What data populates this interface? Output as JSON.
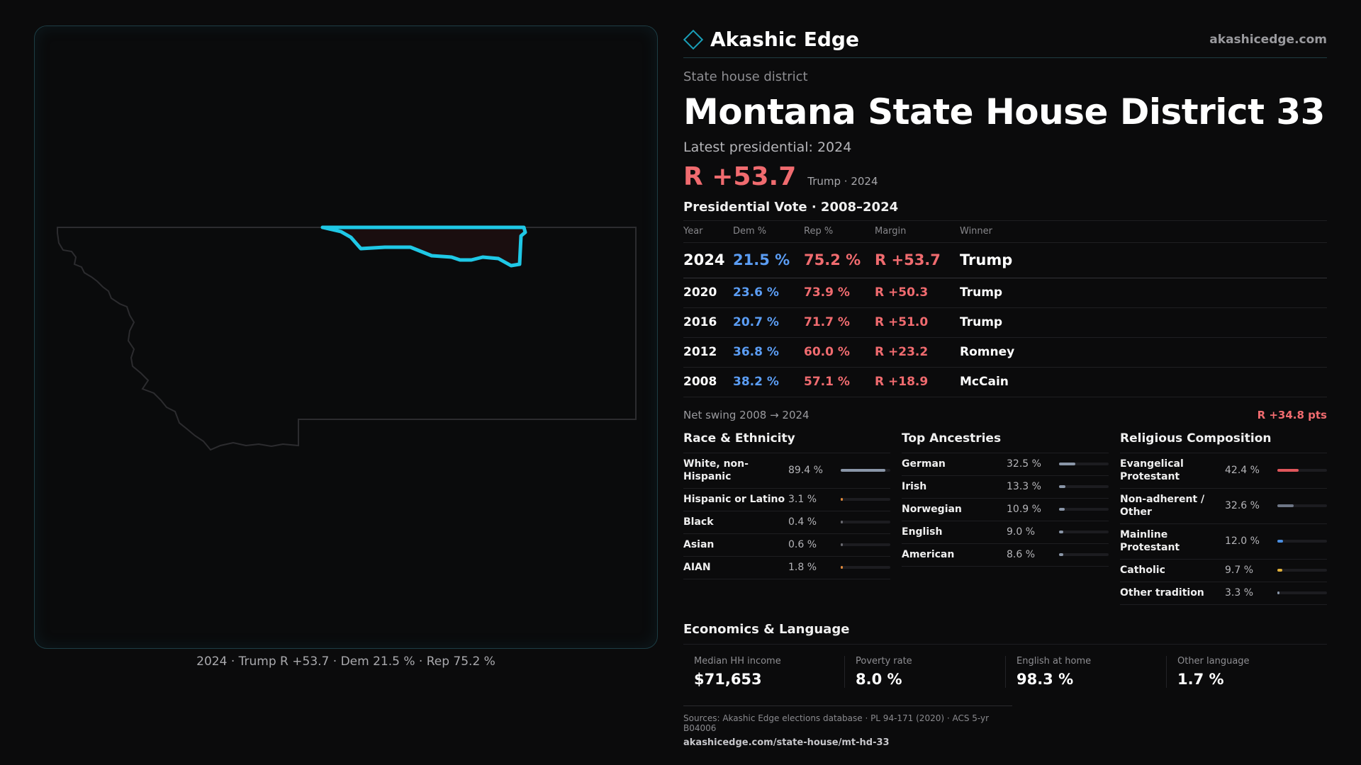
{
  "brand": {
    "name": "Akashic Edge",
    "url": "akashicedge.com"
  },
  "page": {
    "kicker": "State house district",
    "title": "Montana State House District 33",
    "latest_label": "Latest presidential: 2024",
    "headline_margin": "R +53.7",
    "headline_sub": "Trump · 2024"
  },
  "map": {
    "caption": "2024 · Trump R +53.7 · Dem 21.5 % · Rep 75.2 %",
    "state_outline_color": "#2c2c2f",
    "district_fill": "#1a0e0f",
    "district_stroke": "#1fc8e6"
  },
  "presidential": {
    "title": "Presidential Vote · 2008–2024",
    "headers": {
      "year": "Year",
      "dem": "Dem %",
      "rep": "Rep %",
      "margin": "Margin",
      "winner": "Winner"
    },
    "rows": [
      {
        "year": "2024",
        "dem": "21.5 %",
        "rep": "75.2 %",
        "margin": "R +53.7",
        "winner": "Trump"
      },
      {
        "year": "2020",
        "dem": "23.6 %",
        "rep": "73.9 %",
        "margin": "R +50.3",
        "winner": "Trump"
      },
      {
        "year": "2016",
        "dem": "20.7 %",
        "rep": "71.7 %",
        "margin": "R +51.0",
        "winner": "Trump"
      },
      {
        "year": "2012",
        "dem": "36.8 %",
        "rep": "60.0 %",
        "margin": "R +23.2",
        "winner": "Romney"
      },
      {
        "year": "2008",
        "dem": "38.2 %",
        "rep": "57.1 %",
        "margin": "R +18.9",
        "winner": "McCain"
      }
    ],
    "swing_label": "Net swing 2008 → 2024",
    "swing_value": "R +34.8 pts"
  },
  "race": {
    "title": "Race & Ethnicity",
    "items": [
      {
        "label": "White, non-Hispanic",
        "value": "89.4 %",
        "share": 89.4,
        "color": "#8a96a8"
      },
      {
        "label": "Hispanic or Latino",
        "value": "3.1 %",
        "share": 3.1,
        "color": "#e08a3c"
      },
      {
        "label": "Black",
        "value": "0.4 %",
        "share": 0.4,
        "color": "#6a6a70"
      },
      {
        "label": "Asian",
        "value": "0.6 %",
        "share": 0.6,
        "color": "#6a6a70"
      },
      {
        "label": "AIAN",
        "value": "1.8 %",
        "share": 1.8,
        "color": "#e08a3c"
      }
    ]
  },
  "ancestry": {
    "title": "Top Ancestries",
    "items": [
      {
        "label": "German",
        "value": "32.5 %",
        "share": 32.5,
        "color": "#8a96a8"
      },
      {
        "label": "Irish",
        "value": "13.3 %",
        "share": 13.3,
        "color": "#8a96a8"
      },
      {
        "label": "Norwegian",
        "value": "10.9 %",
        "share": 10.9,
        "color": "#8a96a8"
      },
      {
        "label": "English",
        "value": "9.0 %",
        "share": 9.0,
        "color": "#8a96a8"
      },
      {
        "label": "American",
        "value": "8.6 %",
        "share": 8.6,
        "color": "#8a96a8"
      }
    ]
  },
  "religion": {
    "title": "Religious Composition",
    "items": [
      {
        "label": "Evangelical Protestant",
        "value": "42.4 %",
        "share": 42.4,
        "color": "#e0565b"
      },
      {
        "label": "Non-adherent / Other",
        "value": "32.6 %",
        "share": 32.6,
        "color": "#6e7686"
      },
      {
        "label": "Mainline Protestant",
        "value": "12.0 %",
        "share": 12.0,
        "color": "#4a8ee0"
      },
      {
        "label": "Catholic",
        "value": "9.7 %",
        "share": 9.7,
        "color": "#e0b03a"
      },
      {
        "label": "Other tradition",
        "value": "3.3 %",
        "share": 3.3,
        "color": "#8a96a8"
      }
    ]
  },
  "economics": {
    "title": "Economics & Language",
    "items": [
      {
        "label": "Median HH income",
        "value": "$71,653"
      },
      {
        "label": "Poverty rate",
        "value": "8.0 %"
      },
      {
        "label": "English at home",
        "value": "98.3 %"
      },
      {
        "label": "Other language",
        "value": "1.7 %"
      }
    ]
  },
  "sources": {
    "line": "Sources: Akashic Edge elections database · PL 94-171 (2020) · ACS 5-yr B04006",
    "url": "akashicedge.com/state-house/mt-hd-33"
  }
}
